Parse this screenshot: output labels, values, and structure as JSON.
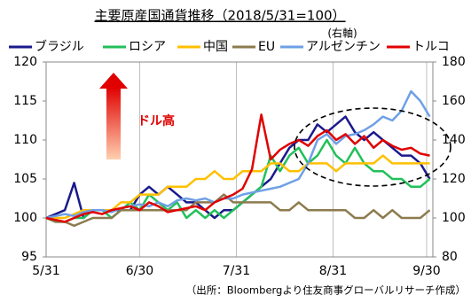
{
  "chart_data": {
    "type": "line",
    "title": "主要原産国通貨推移（2018/5/31=100）",
    "y2_label": "(右軸)",
    "annotation": "ドル高",
    "source": "（出所：Bloombergより住友商事グローバルリサーチ作成）",
    "x": [
      0,
      3,
      6,
      9,
      12,
      15,
      18,
      21,
      24,
      27,
      30,
      33,
      36,
      39,
      42,
      45,
      48,
      51,
      54,
      57,
      60,
      63,
      66,
      69,
      72,
      75,
      78,
      81,
      84,
      87,
      90,
      93,
      96,
      99,
      102,
      105,
      108,
      111,
      114,
      117,
      120,
      123
    ],
    "xlim": [
      0,
      124
    ],
    "xticks": [
      {
        "value": 0,
        "label": "5/31"
      },
      {
        "value": 30,
        "label": "6/30"
      },
      {
        "value": 61,
        "label": "7/31"
      },
      {
        "value": 92,
        "label": "8/31"
      },
      {
        "value": 122,
        "label": "9/30"
      }
    ],
    "ylim": [
      95,
      120
    ],
    "yticks": [
      95,
      100,
      105,
      110,
      115,
      120
    ],
    "y2lim": [
      80,
      180
    ],
    "y2ticks": [
      80,
      100,
      120,
      140,
      160,
      180
    ],
    "grid": "x",
    "series": [
      {
        "name": "ブラジル",
        "color": "#1a1a8c",
        "values": [
          100,
          100.5,
          101,
          104.5,
          100,
          101,
          101,
          101,
          101,
          101,
          103,
          104,
          103,
          104,
          103,
          102,
          102,
          101,
          100,
          101,
          101,
          102,
          103,
          104,
          105,
          107,
          109,
          110,
          110,
          112,
          111,
          112,
          113,
          111,
          110,
          111,
          110,
          109,
          108,
          108,
          107,
          105
        ]
      },
      {
        "name": "ロシア",
        "color": "#22c05a",
        "values": [
          100,
          99.5,
          99.5,
          100,
          100,
          101,
          101,
          100,
          101,
          102,
          101,
          103,
          102,
          101,
          102,
          100,
          101,
          100,
          101,
          100,
          101,
          102,
          103,
          104,
          108,
          106,
          108,
          109,
          107,
          108,
          110,
          108,
          107,
          109,
          107,
          106,
          106,
          105,
          105,
          104,
          104,
          105
        ]
      },
      {
        "name": "中国",
        "color": "#ffc000",
        "values": [
          100,
          100,
          100,
          100.5,
          101,
          101,
          101,
          101,
          102,
          102,
          103,
          103,
          103,
          104,
          104,
          104,
          105,
          105,
          106,
          105,
          105,
          106,
          106,
          106,
          107,
          107,
          106,
          106,
          107,
          107,
          107,
          106,
          107,
          107,
          107,
          107,
          108,
          107,
          107,
          107,
          107,
          107
        ]
      },
      {
        "name": "EU",
        "color": "#8c7b4f",
        "values": [
          100,
          99.5,
          99.5,
          99,
          99.5,
          100,
          100,
          100,
          101,
          101,
          101,
          101,
          101,
          101,
          101,
          101,
          102,
          102,
          102,
          103,
          102,
          102,
          102,
          102,
          102,
          101,
          101,
          102,
          101,
          101,
          101,
          101,
          101,
          100,
          100,
          101,
          100,
          101,
          100,
          100,
          100,
          101
        ]
      },
      {
        "name": "アルゼンチン",
        "color": "#6ea0e6",
        "axis": "y2",
        "values": [
          100,
          101,
          102,
          101,
          103,
          104,
          104,
          103,
          105,
          106,
          107,
          106,
          108,
          106,
          109,
          110,
          109,
          110,
          108,
          110,
          110,
          112,
          113,
          114,
          115,
          116,
          118,
          120,
          128,
          140,
          143,
          138,
          142,
          143,
          145,
          148,
          152,
          150,
          155,
          165,
          160,
          152
        ]
      },
      {
        "name": "トルコ",
        "color": "#e00000",
        "axis": "y2",
        "values": [
          100,
          99,
          98,
          100,
          102,
          103,
          102,
          104,
          105,
          106,
          104,
          108,
          106,
          103,
          104,
          105,
          106,
          104,
          108,
          110,
          112,
          115,
          125,
          153,
          130,
          135,
          138,
          140,
          137,
          142,
          145,
          140,
          143,
          138,
          142,
          136,
          140,
          137,
          135,
          136,
          133,
          132
        ]
      }
    ]
  }
}
